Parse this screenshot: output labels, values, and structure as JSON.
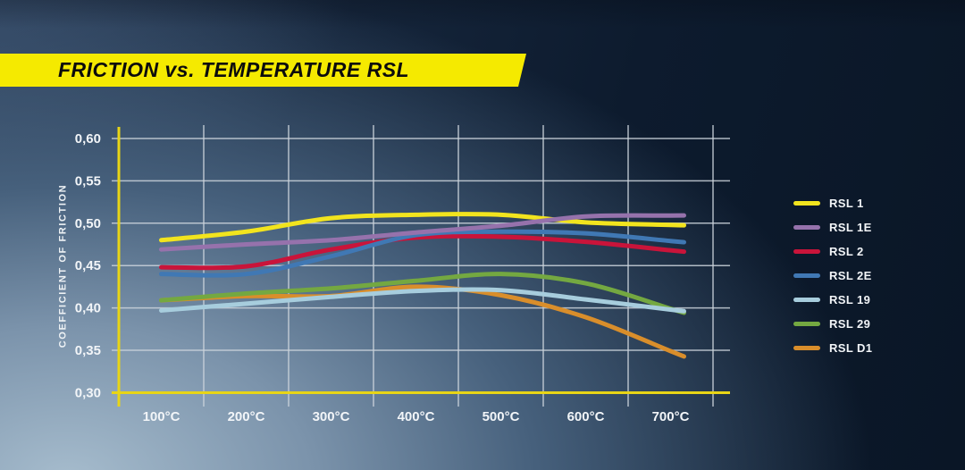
{
  "title": {
    "text": "FRICTION vs. TEMPERATURE RSL"
  },
  "chart_data": {
    "type": "line",
    "title": "FRICTION vs. TEMPERATURE RSL",
    "xlabel": "",
    "ylabel": "COEFFICIENT OF FRICTION",
    "categories": [
      "100°C",
      "200°C",
      "300°C",
      "400°C",
      "500°C",
      "600°C",
      "700°C"
    ],
    "x_values": [
      100,
      200,
      300,
      400,
      500,
      600,
      700
    ],
    "ylim": [
      0.3,
      0.6
    ],
    "ytick_step": 0.05,
    "ytick_labels": [
      "0,60",
      "0,55",
      "0,50",
      "0,45",
      "0,40",
      "0,35",
      "0,30"
    ],
    "grid": true,
    "legend_position": "right",
    "series": [
      {
        "name": "RSL 1",
        "color": "#f2e41e",
        "values": [
          0.48,
          0.49,
          0.506,
          0.51,
          0.51,
          0.501,
          0.498
        ]
      },
      {
        "name": "RSL 1E",
        "color": "#9672ac",
        "values": [
          0.469,
          0.475,
          0.48,
          0.489,
          0.497,
          0.508,
          0.509
        ]
      },
      {
        "name": "RSL 2",
        "color": "#c9143a",
        "values": [
          0.448,
          0.449,
          0.469,
          0.483,
          0.484,
          0.478,
          0.468
        ]
      },
      {
        "name": "RSL 2E",
        "color": "#4078b4",
        "values": [
          0.44,
          0.44,
          0.461,
          0.486,
          0.49,
          0.488,
          0.479
        ]
      },
      {
        "name": "RSL 19",
        "color": "#a7cddd",
        "values": [
          0.397,
          0.405,
          0.413,
          0.42,
          0.421,
          0.41,
          0.398
        ]
      },
      {
        "name": "RSL 29",
        "color": "#74a841",
        "values": [
          0.409,
          0.417,
          0.423,
          0.432,
          0.44,
          0.429,
          0.399
        ]
      },
      {
        "name": "RSL D1",
        "color": "#d98e2b",
        "values": [
          0.409,
          0.414,
          0.414,
          0.425,
          0.415,
          0.389,
          0.349
        ]
      }
    ]
  },
  "colors": {
    "axis": "#e8d516",
    "grid": "#ccd4dc",
    "banner": "#f5ea00",
    "tick_text": "#f2f5f8"
  }
}
